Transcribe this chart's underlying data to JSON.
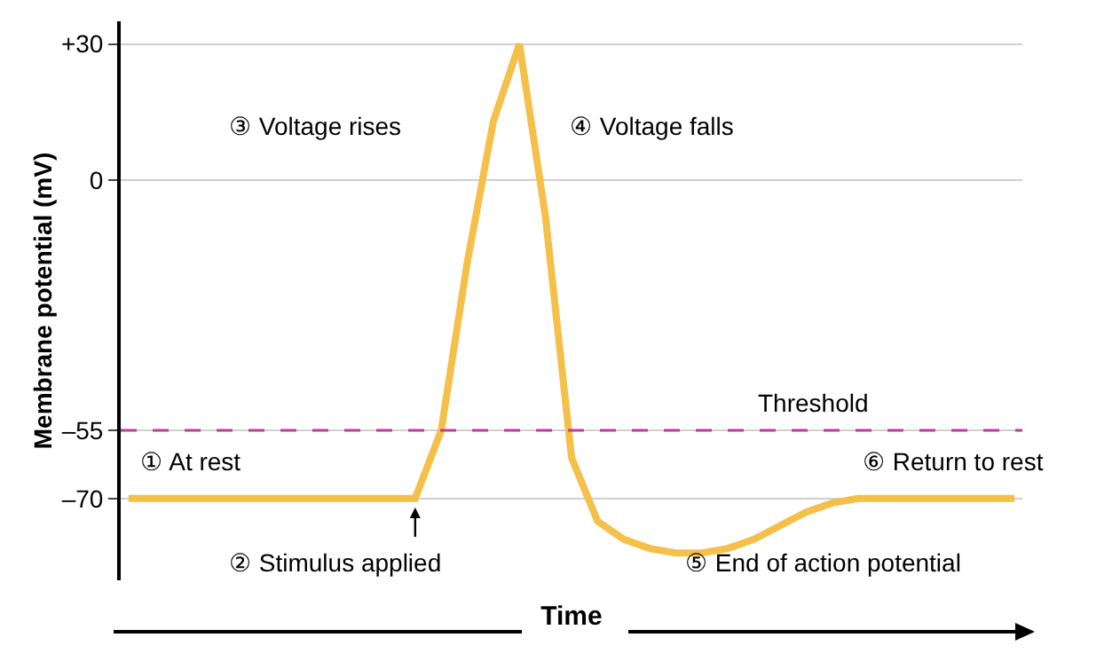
{
  "chart_data": {
    "type": "line",
    "ylabel": "Membrane potential (mV)",
    "xlabel": "Time",
    "categories": [
      null,
      null,
      null,
      null,
      null,
      null,
      null,
      null,
      null,
      null,
      null,
      null,
      null,
      null,
      null,
      null,
      null,
      null,
      null,
      null,
      null,
      null,
      null,
      null,
      null,
      null,
      null,
      null,
      null,
      null,
      null,
      null,
      null,
      null,
      null
    ],
    "series": [
      {
        "color": "#f5c04a",
        "values": [
          -70,
          -70,
          -70,
          -70,
          -70,
          -70,
          -70,
          -70,
          -70,
          -70,
          -70,
          -70,
          -55,
          -18,
          13,
          30,
          -8,
          -61,
          -75,
          -79,
          -81,
          -82,
          -82,
          -81,
          -79,
          -76,
          -73,
          -71,
          -70,
          -70,
          -70,
          -70,
          -70,
          -70,
          -70
        ]
      }
    ],
    "ylim": [
      -88,
      35
    ],
    "yticks": [
      {
        "value": 30,
        "label": "+30"
      },
      0,
      {
        "value": -55,
        "label": "–55"
      },
      {
        "value": -70,
        "label": "–70"
      }
    ],
    "grid": "y",
    "marker": "none",
    "line_style": "solid",
    "tick_labels": "y",
    "ref_lines": [
      {
        "axis": "y",
        "value": -55,
        "label": "Threshold",
        "color": "#c0399a",
        "line_style": "dashed"
      }
    ],
    "annotations": [
      "① At rest",
      "② Stimulus applied",
      "③ Voltage rises",
      "④ Voltage falls",
      "⑤ End of action potential",
      "⑥ Return to rest"
    ]
  }
}
